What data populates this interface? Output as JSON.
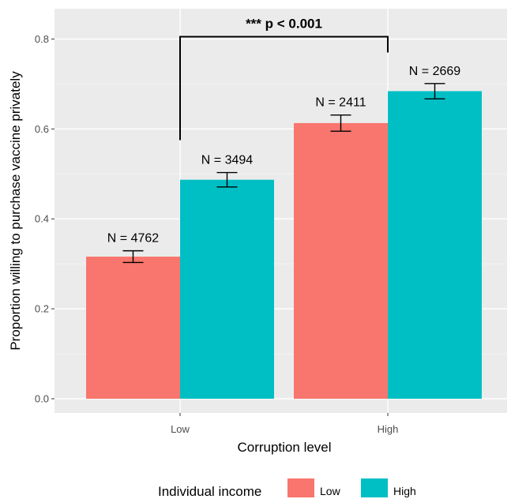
{
  "chart_data": {
    "type": "bar",
    "xlabel": "Corruption level",
    "ylabel": "Proportion willing to purchase vaccine privately",
    "categories": [
      "Low",
      "High"
    ],
    "ylim": [
      0,
      0.85
    ],
    "yticks": [
      0.0,
      0.2,
      0.4,
      0.6,
      0.8
    ],
    "ytick_labels": [
      "0.0",
      "0.2",
      "0.4",
      "0.6",
      "0.8"
    ],
    "grid": true,
    "legend_title": "Individual income",
    "legend_position": "bottom",
    "series": [
      {
        "name": "Low",
        "color": "#F8766D",
        "values": [
          0.316,
          0.613
        ],
        "error_low": [
          0.303,
          0.595
        ],
        "error_high": [
          0.329,
          0.631
        ],
        "labels": [
          "N = 4762",
          "N = 2411"
        ]
      },
      {
        "name": "High",
        "color": "#00BFC4",
        "values": [
          0.487,
          0.684
        ],
        "error_low": [
          0.471,
          0.667
        ],
        "error_high": [
          0.503,
          0.701
        ],
        "labels": [
          "N = 3494",
          "N = 2669"
        ]
      }
    ],
    "annotation": {
      "text": "*** p < 0.001",
      "bracket_y": 0.805,
      "left_drop_y": 0.575,
      "right_drop_y": 0.77
    }
  }
}
